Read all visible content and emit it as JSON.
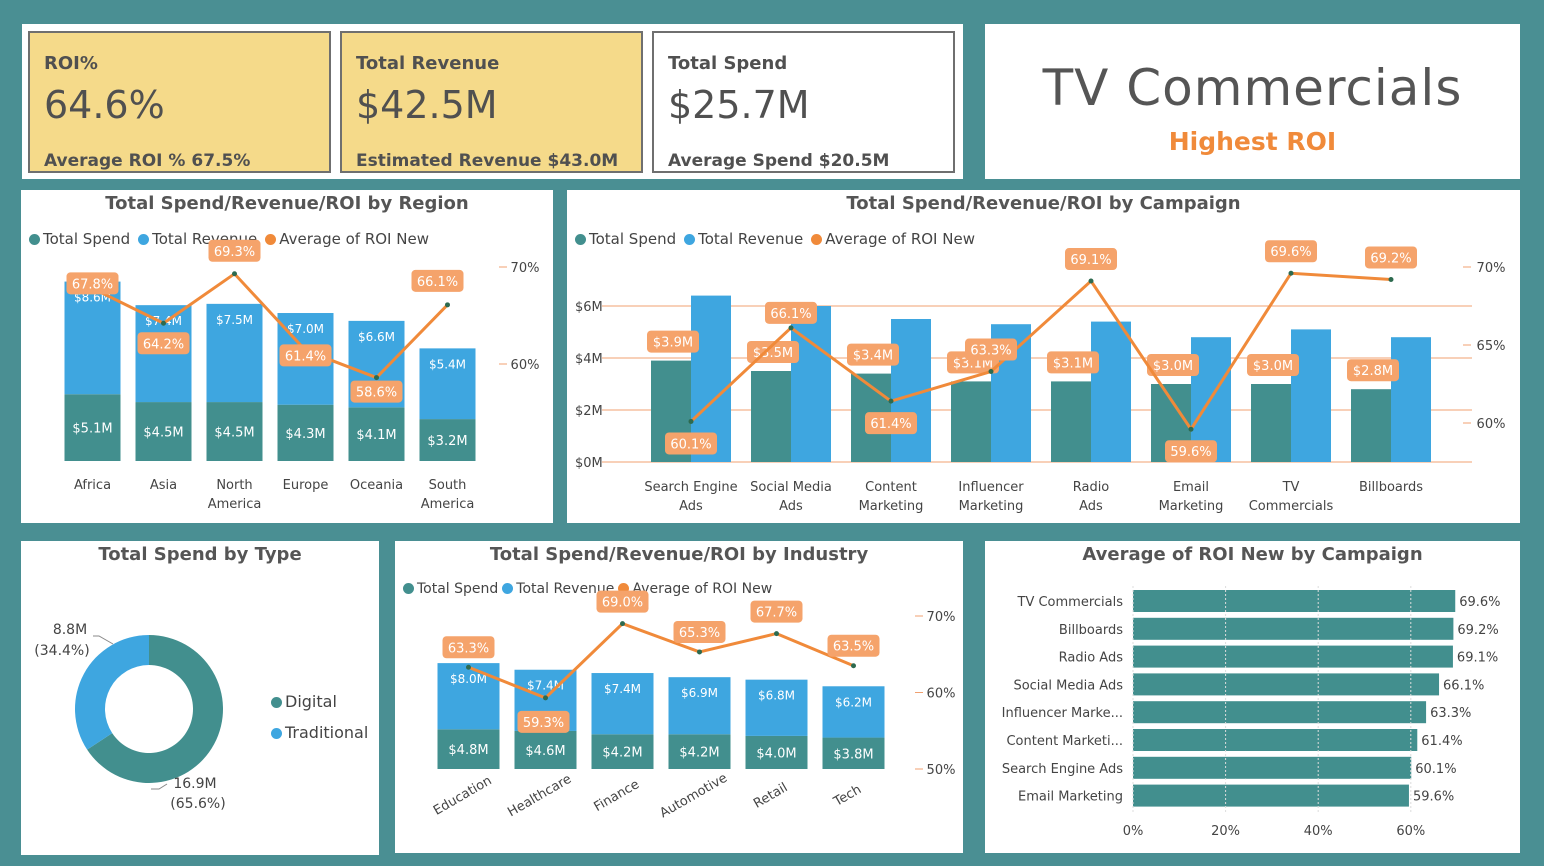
{
  "colors": {
    "spend": "#428f8e",
    "revenue": "#3ea6e0",
    "roi": "#f08a3a",
    "roi_label_bg": "#f5a36b",
    "kpi_highlight": "#f5da8a",
    "grid": "#f0a070"
  },
  "kpis": [
    {
      "label": "ROI%",
      "value": "64.6%",
      "sub": "Average ROI % 67.5%",
      "highlight": true
    },
    {
      "label": "Total Revenue",
      "value": "$42.5M",
      "sub": "Estimated Revenue $43.0M",
      "highlight": true
    },
    {
      "label": "Total Spend",
      "value": "$25.7M",
      "sub": "Average Spend $20.5M",
      "highlight": false
    }
  ],
  "hero": {
    "title": "TV Commercials",
    "subtitle": "Highest ROI"
  },
  "legend_labels": [
    "Total Spend",
    "Total Revenue",
    "Average of ROI New"
  ],
  "donut_legend": [
    "Digital",
    "Traditional"
  ],
  "chart_data": [
    {
      "type": "bar",
      "title": "Total Spend/Revenue/ROI by Region",
      "categories": [
        "Africa",
        "Asia",
        "North America",
        "Europe",
        "Oceania",
        "South America"
      ],
      "series": [
        {
          "name": "Total Spend",
          "values": [
            5.1,
            4.5,
            4.5,
            4.3,
            4.1,
            3.2
          ],
          "labels": [
            "$5.1M",
            "$4.5M",
            "$4.5M",
            "$4.3M",
            "$4.1M",
            "$3.2M"
          ]
        },
        {
          "name": "Total Revenue",
          "values": [
            8.6,
            7.4,
            7.5,
            7.0,
            6.6,
            5.4
          ],
          "labels": [
            "$8.6M",
            "$7.4M",
            "$7.5M",
            "$7.0M",
            "$6.6M",
            "$5.4M"
          ]
        },
        {
          "name": "Average of ROI New",
          "values": [
            67.8,
            64.2,
            69.3,
            61.4,
            58.6,
            66.1
          ],
          "labels": [
            "67.8%",
            "64.2%",
            "69.3%",
            "61.4%",
            "58.6%",
            "66.1%"
          ]
        }
      ],
      "y2_ticks": [
        "60%",
        "70%"
      ],
      "stacked": true
    },
    {
      "type": "bar",
      "title": "Total Spend/Revenue/ROI by Campaign",
      "categories": [
        "Search Engine Ads",
        "Social Media Ads",
        "Content Marketing",
        "Influencer Marketing",
        "Radio Ads",
        "Email Marketing",
        "TV Commercials",
        "Billboards"
      ],
      "series": [
        {
          "name": "Total Spend",
          "values": [
            3.9,
            3.5,
            3.4,
            3.1,
            3.1,
            3.0,
            3.0,
            2.8
          ],
          "labels": [
            "$3.9M",
            "$3.5M",
            "$3.4M",
            "$3.1M",
            "$3.1M",
            "$3.0M",
            "$3.0M",
            "$2.8M"
          ]
        },
        {
          "name": "Total Revenue",
          "values": [
            6.4,
            6.0,
            5.5,
            5.3,
            5.4,
            4.8,
            5.1,
            4.8
          ]
        },
        {
          "name": "Average of ROI New",
          "values": [
            60.1,
            66.1,
            61.4,
            63.3,
            69.1,
            59.6,
            69.6,
            69.2
          ],
          "labels": [
            "60.1%",
            "66.1%",
            "61.4%",
            "63.3%",
            "69.1%",
            "59.6%",
            "69.6%",
            "69.2%"
          ]
        }
      ],
      "y_ticks": [
        "$0M",
        "$2M",
        "$4M",
        "$6M"
      ],
      "y2_ticks": [
        "60%",
        "65%",
        "70%"
      ]
    },
    {
      "type": "pie",
      "title": "Total Spend by Type",
      "categories": [
        "Digital",
        "Traditional"
      ],
      "values": [
        16.9,
        8.8
      ],
      "labels": [
        "16.9M",
        "8.8M"
      ],
      "percents": [
        "(65.6%)",
        "(34.4%)"
      ]
    },
    {
      "type": "bar",
      "title": "Total Spend/Revenue/ROI by Industry",
      "categories": [
        "Education",
        "Healthcare",
        "Finance",
        "Automotive",
        "Retail",
        "Tech"
      ],
      "series": [
        {
          "name": "Total Spend",
          "values": [
            4.8,
            4.6,
            4.2,
            4.2,
            4.0,
            3.8
          ],
          "labels": [
            "$4.8M",
            "$4.6M",
            "$4.2M",
            "$4.2M",
            "$4.0M",
            "$3.8M"
          ]
        },
        {
          "name": "Total Revenue",
          "values": [
            8.0,
            7.4,
            7.4,
            6.9,
            6.8,
            6.2
          ],
          "labels": [
            "$8.0M",
            "$7.4M",
            "$7.4M",
            "$6.9M",
            "$6.8M",
            "$6.2M"
          ]
        },
        {
          "name": "Average of ROI New",
          "values": [
            63.3,
            59.3,
            69.0,
            65.3,
            67.7,
            63.5
          ],
          "labels": [
            "63.3%",
            "59.3%",
            "69.0%",
            "65.3%",
            "67.7%",
            "63.5%"
          ]
        }
      ],
      "y2_ticks": [
        "50%",
        "60%",
        "70%"
      ],
      "stacked": true
    },
    {
      "type": "bar",
      "orientation": "horizontal",
      "title": "Average of ROI New by Campaign",
      "categories": [
        "TV Commercials",
        "Billboards",
        "Radio Ads",
        "Social Media Ads",
        "Influencer Marke...",
        "Content Marketi...",
        "Search Engine Ads",
        "Email Marketing"
      ],
      "values": [
        69.6,
        69.2,
        69.1,
        66.1,
        63.3,
        61.4,
        60.1,
        59.6
      ],
      "labels": [
        "69.6%",
        "69.2%",
        "69.1%",
        "66.1%",
        "63.3%",
        "61.4%",
        "60.1%",
        "59.6%"
      ],
      "x_ticks": [
        "0%",
        "20%",
        "40%",
        "60%"
      ],
      "xlim": [
        0,
        75
      ]
    }
  ]
}
